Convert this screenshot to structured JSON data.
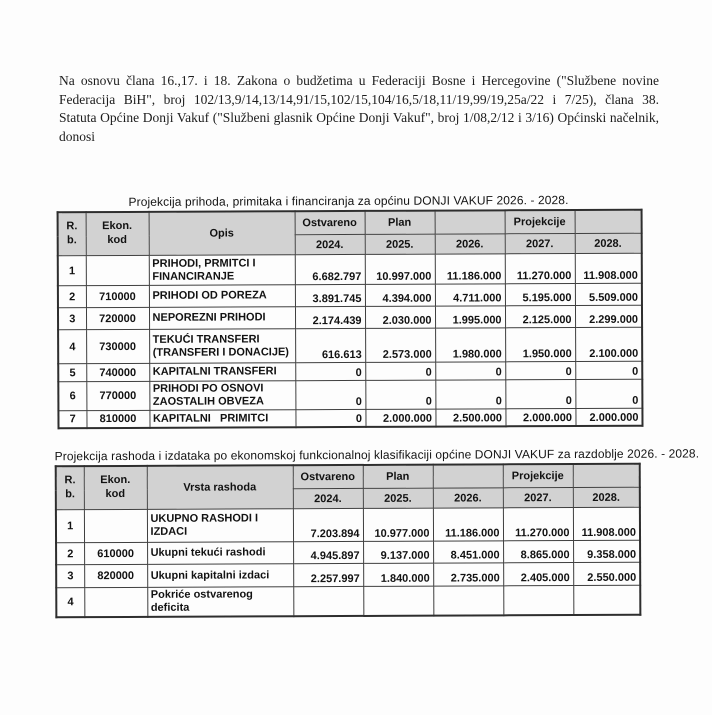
{
  "document": {
    "intro_paragraph": "Na osnovu člana 16.,17. i 18. Zakona o budžetima u Federaciji Bosne i Hercegovine (\"Službene novine Federacija BiH\", broj 102/13,9/14,13/14,91/15,102/15,104/16,5/18,11/19,99/19,25a/22 i 7/25), člana 38. Statuta Općine Donji Vakuf (\"Službeni glasnik Općine Donji Vakuf\", broj 1/08,2/12 i 3/16)  Općinski načelnik, donosi"
  },
  "revenue_table": {
    "title": "Projekcija  prihoda, primitaka i financiranja za općinu DONJI VAKUF 2026. - 2028.",
    "headers": {
      "rb": "R.\nb.",
      "ekon_kod": "Ekon.\nkod",
      "description": "Opis",
      "ostvareno": "Ostvareno",
      "plan": "Plan",
      "projekcije": "Projekcije",
      "years": [
        "2024.",
        "2025.",
        "2026.",
        "2027.",
        "2028."
      ]
    },
    "rows": [
      {
        "rb": "1",
        "kod": "",
        "opis": "PRIHODI, PRMITCI I FINANCIRANJE",
        "values": [
          "6.682.797",
          "10.997.000",
          "11.186.000",
          "11.270.000",
          "11.908.000"
        ]
      },
      {
        "rb": "2",
        "kod": "710000",
        "opis": "PRIHODI OD POREZA",
        "values": [
          "3.891.745",
          "4.394.000",
          "4.711.000",
          "5.195.000",
          "5.509.000"
        ]
      },
      {
        "rb": "3",
        "kod": "720000",
        "opis": "NEPOREZNI PRIHODI",
        "values": [
          "2.174.439",
          "2.030.000",
          "1.995.000",
          "2.125.000",
          "2.299.000"
        ]
      },
      {
        "rb": "4",
        "kod": "730000",
        "opis": "TEKUĆI TRANSFERI (TRANSFERI I DONACIJE)",
        "values": [
          "616.613",
          "2.573.000",
          "1.980.000",
          "1.950.000",
          "2.100.000"
        ]
      },
      {
        "rb": "5",
        "kod": "740000",
        "opis": "KAPITALNI TRANSFERI",
        "values": [
          "0",
          "0",
          "0",
          "0",
          "0"
        ]
      },
      {
        "rb": "6",
        "kod": "770000",
        "opis": "PRIHODI PO OSNOVI ZAOSTALIH OBVEZA",
        "values": [
          "0",
          "0",
          "0",
          "0",
          "0"
        ]
      },
      {
        "rb": "7",
        "kod": "810000",
        "opis": "KAPITALNI   PRIMITCI",
        "values": [
          "0",
          "2.000.000",
          "2.500.000",
          "2.000.000",
          "2.000.000"
        ]
      }
    ]
  },
  "expenditure_table": {
    "title": "Projekcija rashoda i izdataka po ekonomskoj funkcionalnoj klasifikaciji  općine DONJI VAKUF za razdoblje 2026. - 2028.",
    "headers": {
      "rb": "R.\nb.",
      "ekon_kod": "Ekon.\nkod",
      "description": "Vrsta rashoda",
      "ostvareno": "Ostvareno",
      "plan": "Plan",
      "projekcije": "Projekcije",
      "years": [
        "2024.",
        "2025.",
        "2026.",
        "2027.",
        "2028."
      ]
    },
    "rows": [
      {
        "rb": "1",
        "kod": "",
        "opis": "UKUPNO RASHODI I IZDACI",
        "values": [
          "7.203.894",
          "10.977.000",
          "11.186.000",
          "11.270.000",
          "11.908.000"
        ]
      },
      {
        "rb": "2",
        "kod": "610000",
        "opis": "Ukupni tekući rashodi",
        "values": [
          "4.945.897",
          "9.137.000",
          "8.451.000",
          "8.865.000",
          "9.358.000"
        ]
      },
      {
        "rb": "3",
        "kod": "820000",
        "opis": "Ukupni kapitalni izdaci",
        "values": [
          "2.257.997",
          "1.840.000",
          "2.735.000",
          "2.405.000",
          "2.550.000"
        ]
      },
      {
        "rb": "4",
        "kod": "",
        "opis": "Pokriće ostvarenog deficita",
        "values": [
          "",
          "",
          "",
          "",
          ""
        ]
      }
    ]
  }
}
